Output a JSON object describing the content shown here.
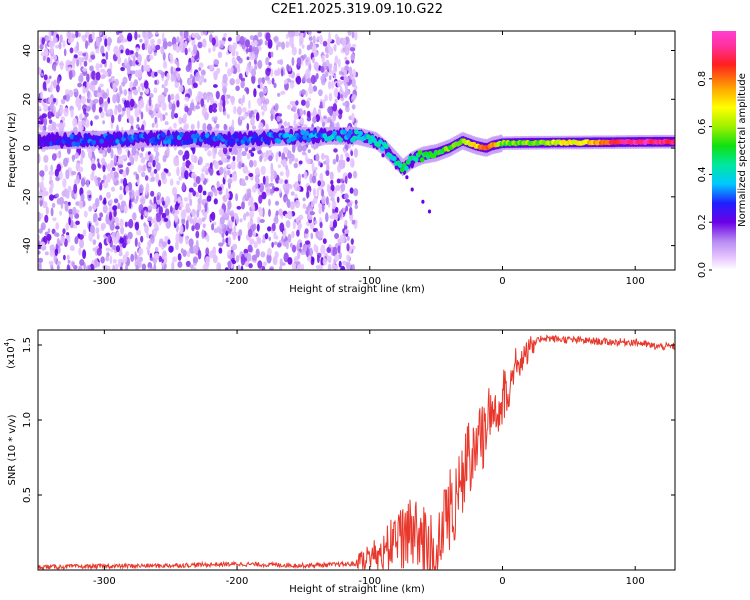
{
  "title": "C2E1.2025.319.09.10.G22",
  "chart_data": [
    {
      "type": "heatmap",
      "xlabel": "Height of straight line (km)",
      "ylabel": "Frequency (Hz)",
      "xlim": [
        -350,
        130
      ],
      "ylim": [
        -50,
        48
      ],
      "xticks": [
        -300,
        -200,
        -100,
        0,
        100
      ],
      "yticks": [
        -40,
        -20,
        0,
        20,
        40
      ],
      "colorbar": {
        "label": "Normalized spectral amplitude",
        "range": [
          0,
          1
        ],
        "ticks": [
          0.0,
          0.2,
          0.4,
          0.6,
          0.8
        ],
        "tick_labels": [
          "0.0",
          "0.2",
          "0.4",
          "0.6",
          "0.8"
        ]
      },
      "ridge": {
        "x": [
          -350,
          -300,
          -250,
          -200,
          -150,
          -110,
          -95,
          -85,
          -75,
          -68,
          -60,
          -50,
          -40,
          -30,
          -20,
          -12,
          -8,
          0,
          30,
          60,
          100,
          130
        ],
        "y": [
          3,
          3.5,
          4,
          3.5,
          5,
          5,
          3,
          -2,
          -8,
          -5,
          -3,
          -2,
          0,
          3,
          1,
          0,
          1,
          2,
          2.2,
          2.3,
          2.5,
          2.6
        ],
        "amplitude": [
          0.25,
          0.28,
          0.3,
          0.28,
          0.32,
          0.38,
          0.4,
          0.42,
          0.45,
          0.45,
          0.5,
          0.52,
          0.55,
          0.6,
          0.7,
          0.82,
          0.8,
          0.55,
          0.6,
          0.7,
          0.95,
          0.9
        ]
      },
      "noise_cutoff_x": -110
    },
    {
      "type": "line",
      "xlabel": "Height of straight line (km)",
      "ylabel": "SNR (10 * v/v)",
      "y_multiplier": "(x10",
      "y_multiplier_exp": "4",
      "xlim": [
        -350,
        130
      ],
      "ylim": [
        0,
        1.6
      ],
      "xticks": [
        -300,
        -200,
        -100,
        0,
        100
      ],
      "yticks": [
        0.5,
        1.0,
        1.5
      ],
      "ytick_labels": [
        "0.5",
        "1.0",
        "1.5"
      ],
      "series": [
        {
          "name": "SNR",
          "color": "#e8382c",
          "x": [
            -350,
            -250,
            -200,
            -150,
            -110,
            -90,
            -75,
            -68,
            -60,
            -55,
            -50,
            -45,
            -35,
            -25,
            -10,
            0,
            10,
            20,
            30,
            40,
            60,
            80,
            100,
            115,
            130
          ],
          "y": [
            0.02,
            0.03,
            0.04,
            0.03,
            0.04,
            0.12,
            0.2,
            0.3,
            0.22,
            0.12,
            0.05,
            0.3,
            0.5,
            0.75,
            1.0,
            1.15,
            1.35,
            1.48,
            1.55,
            1.54,
            1.53,
            1.52,
            1.52,
            1.49,
            1.49
          ]
        }
      ]
    }
  ]
}
